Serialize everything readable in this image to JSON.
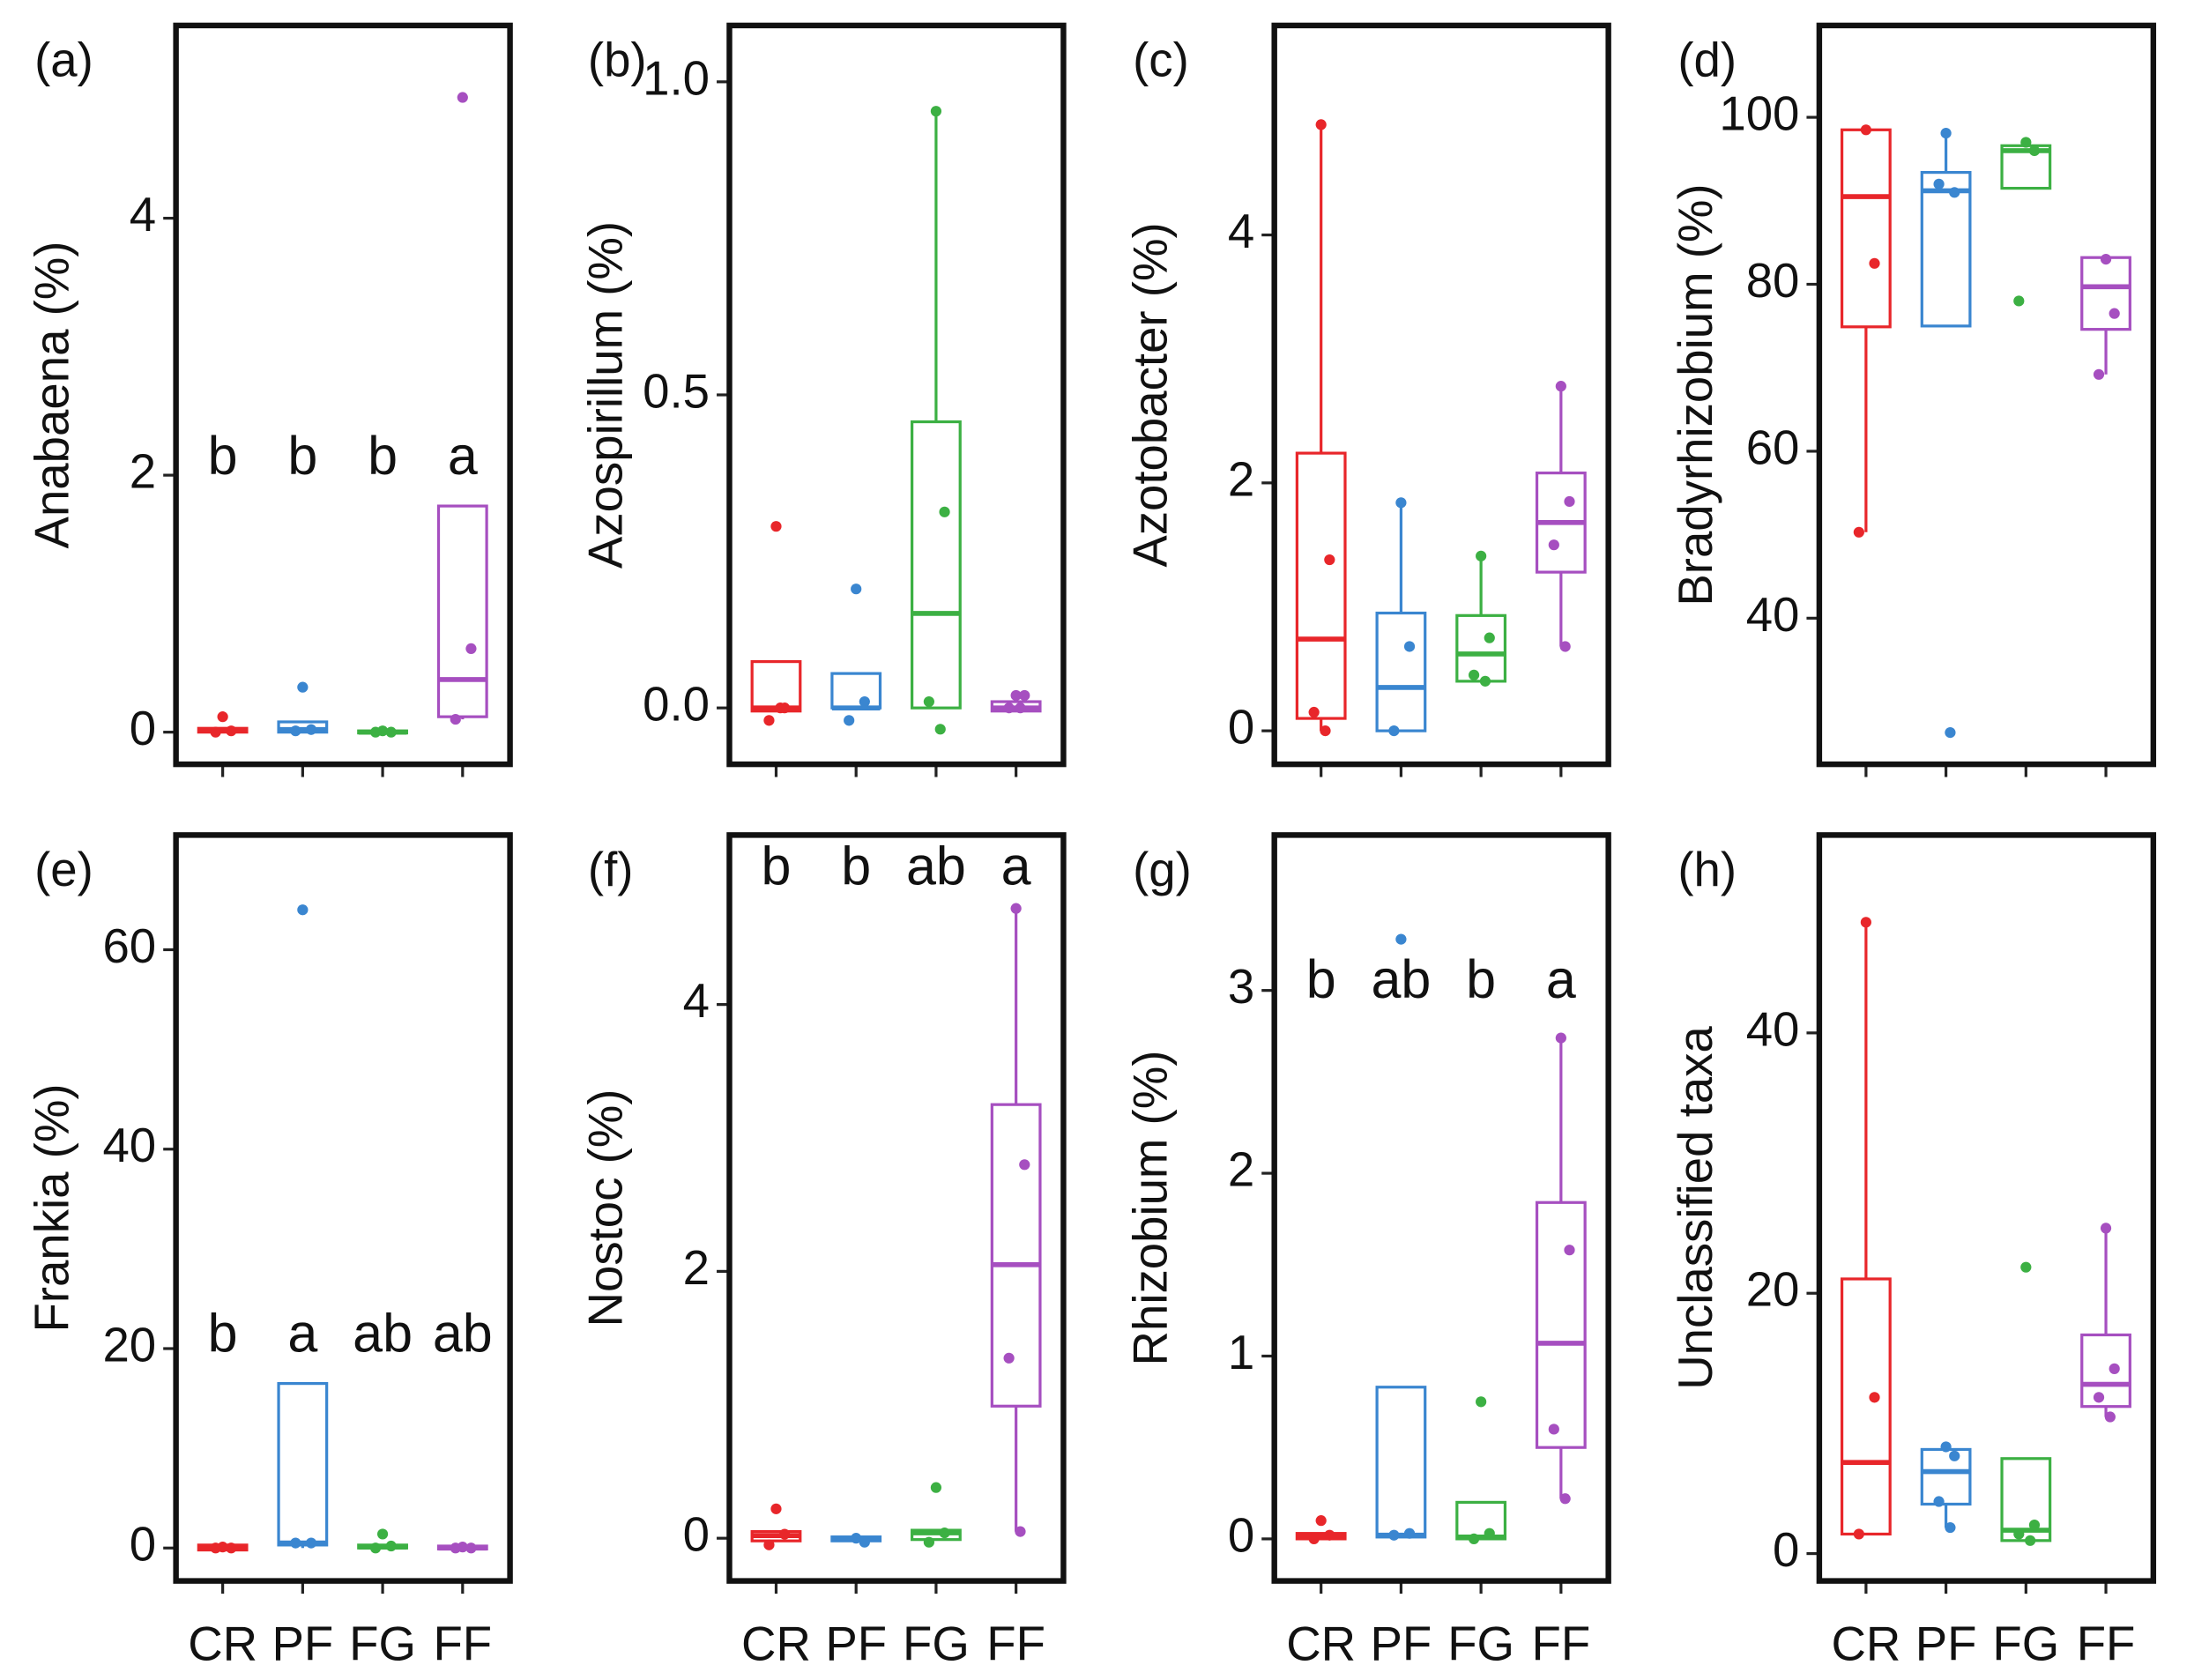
{
  "chart_data": [
    {
      "type": "box",
      "title": "(a)",
      "ylabel": "Anabaena (%)",
      "colors": [
        "#e8262a",
        "#3a86d0",
        "#3cb043",
        "#a64fc0"
      ],
      "ylim": [
        -0.25,
        5.5
      ],
      "yticks": [
        0,
        2,
        4
      ],
      "annotations": [
        "b",
        "b",
        "b",
        "a"
      ],
      "boxes": [
        {
          "whislo": 0,
          "q1": 0,
          "med": 0.01,
          "q3": 0.03,
          "whishi": 0.03,
          "points": [
            0.12,
            0.01,
            0
          ]
        },
        {
          "whislo": 0,
          "q1": 0,
          "med": 0.02,
          "q3": 0.08,
          "whishi": 0.08,
          "points": [
            0.35,
            0.02,
            0.01
          ]
        },
        {
          "whislo": 0,
          "q1": 0,
          "med": 0,
          "q3": 0.01,
          "whishi": 0.01,
          "points": [
            0.01,
            0,
            0
          ]
        },
        {
          "whislo": 0.1,
          "q1": 0.12,
          "med": 0.41,
          "q3": 1.76,
          "whishi": 1.76,
          "points": [
            4.94,
            0.65,
            0.1
          ]
        }
      ]
    },
    {
      "type": "box",
      "title": "(b)",
      "ylabel": "Azospirillum (%)",
      "colors": [
        "#e8262a",
        "#3a86d0",
        "#3cb043",
        "#a64fc0"
      ],
      "ylim": [
        -0.09,
        1.09
      ],
      "yticks": [
        {
          "value": 0,
          "label": "0.0"
        },
        {
          "value": 0.5,
          "label": "0.5"
        },
        {
          "value": 1,
          "label": "1.0"
        }
      ],
      "boxes": [
        {
          "whislo": -0.005,
          "q1": -0.005,
          "med": 0,
          "q3": 0.074,
          "whishi": 0.074,
          "points": [
            0.29,
            0,
            -0.02,
            0
          ]
        },
        {
          "whislo": 0,
          "q1": 0,
          "med": 0,
          "q3": 0.055,
          "whishi": 0.055,
          "points": [
            0.19,
            0.01,
            -0.02
          ]
        },
        {
          "whislo": 0,
          "q1": 0,
          "med": 0.151,
          "q3": 0.457,
          "whishi": 0.953,
          "points": [
            0.953,
            0.313,
            0.01,
            -0.034
          ]
        },
        {
          "whislo": -0.005,
          "q1": -0.005,
          "med": 0,
          "q3": 0.01,
          "whishi": 0.01,
          "points": [
            0.02,
            0.02,
            0,
            0
          ]
        }
      ]
    },
    {
      "type": "box",
      "title": "(c)",
      "ylabel": "Azotobacter (%)",
      "colors": [
        "#e8262a",
        "#3a86d0",
        "#3cb043",
        "#a64fc0"
      ],
      "ylim": [
        -0.27,
        5.69
      ],
      "yticks": [
        0,
        2,
        4
      ],
      "boxes": [
        {
          "whislo": 0,
          "q1": 0.1,
          "med": 0.74,
          "q3": 2.24,
          "whishi": 4.89,
          "points": [
            4.89,
            1.38,
            0.15,
            0
          ]
        },
        {
          "whislo": 0,
          "q1": 0,
          "med": 0.35,
          "q3": 0.95,
          "whishi": 1.84,
          "points": [
            1.84,
            0.68,
            0
          ]
        },
        {
          "whislo": 0.4,
          "q1": 0.4,
          "med": 0.62,
          "q3": 0.93,
          "whishi": 1.41,
          "points": [
            1.41,
            0.75,
            0.45,
            0.4
          ]
        },
        {
          "whislo": 0.68,
          "q1": 1.28,
          "med": 1.68,
          "q3": 2.08,
          "whishi": 2.78,
          "points": [
            2.78,
            1.85,
            1.5,
            0.68
          ]
        }
      ]
    },
    {
      "type": "box",
      "title": "(d)",
      "ylabel": "Bradyrhizobium (%)",
      "colors": [
        "#e8262a",
        "#3a86d0",
        "#3cb043",
        "#a64fc0"
      ],
      "ylim": [
        22.5,
        111
      ],
      "yticks": [
        40,
        60,
        80,
        100
      ],
      "boxes": [
        {
          "whislo": 50.3,
          "q1": 74.9,
          "med": 90.5,
          "q3": 98.5,
          "whishi": 98.5,
          "points": [
            98.5,
            82.5,
            50.3
          ]
        },
        {
          "whislo": 75,
          "q1": 75,
          "med": 91.2,
          "q3": 93.4,
          "whishi": 98.1,
          "points": [
            98.1,
            91,
            92,
            26.3
          ]
        },
        {
          "whislo": 91.5,
          "q1": 91.5,
          "med": 96,
          "q3": 96.6,
          "whishi": 97,
          "points": [
            97,
            96,
            78
          ]
        },
        {
          "whislo": 69.2,
          "q1": 74.6,
          "med": 79.7,
          "q3": 83.2,
          "whishi": 83.2,
          "points": [
            83,
            76.5,
            69.2
          ]
        }
      ]
    },
    {
      "type": "box",
      "title": "(e)",
      "ylabel": "Frankia (%)",
      "colors": [
        "#e8262a",
        "#3a86d0",
        "#3cb043",
        "#a64fc0"
      ],
      "categories": [
        "CR",
        "PF",
        "FG",
        "FF"
      ],
      "ylim": [
        -3.3,
        71.5
      ],
      "yticks": [
        0,
        20,
        40,
        60
      ],
      "annotations": [
        "b",
        "a",
        "ab",
        "ab"
      ],
      "boxes": [
        {
          "whislo": -0.2,
          "q1": -0.2,
          "med": 0,
          "q3": 0.3,
          "whishi": 0.3,
          "points": [
            0.1,
            0,
            0
          ]
        },
        {
          "whislo": 0,
          "q1": 0.3,
          "med": 0.5,
          "q3": 16.5,
          "whishi": 16.5,
          "points": [
            64,
            0.5,
            0.5
          ]
        },
        {
          "whislo": 0,
          "q1": 0,
          "med": 0.1,
          "q3": 0.3,
          "whishi": 0.3,
          "points": [
            1.4,
            0.2,
            0
          ]
        },
        {
          "whislo": -0.1,
          "q1": -0.1,
          "med": 0,
          "q3": 0.2,
          "whishi": 0.2,
          "points": [
            0.1,
            0,
            0
          ]
        }
      ]
    },
    {
      "type": "box",
      "title": "(f)",
      "ylabel": "Nostoc (%)",
      "colors": [
        "#e8262a",
        "#3a86d0",
        "#3cb043",
        "#a64fc0"
      ],
      "categories": [
        "CR",
        "PF",
        "FG",
        "FF"
      ],
      "ylim": [
        -0.32,
        5.27
      ],
      "yticks": [
        0,
        2,
        4
      ],
      "annotations": [
        "b",
        "b",
        "ab",
        "a"
      ],
      "boxes": [
        {
          "whislo": -0.02,
          "q1": -0.02,
          "med": 0.02,
          "q3": 0.05,
          "whishi": 0.05,
          "points": [
            0.22,
            0.03,
            -0.05
          ]
        },
        {
          "whislo": -0.02,
          "q1": -0.02,
          "med": 0,
          "q3": 0.01,
          "whishi": 0.01,
          "points": [
            0,
            -0.03
          ]
        },
        {
          "whislo": -0.01,
          "q1": -0.01,
          "med": 0.04,
          "q3": 0.06,
          "whishi": 0.06,
          "points": [
            0.38,
            0.04,
            -0.03
          ]
        },
        {
          "whislo": 0.05,
          "q1": 0.99,
          "med": 2.05,
          "q3": 3.25,
          "whishi": 4.72,
          "points": [
            4.72,
            2.8,
            1.35,
            0.05
          ]
        }
      ]
    },
    {
      "type": "box",
      "title": "(g)",
      "ylabel": "Rhizobium (%)",
      "colors": [
        "#e8262a",
        "#3a86d0",
        "#3cb043",
        "#a64fc0"
      ],
      "categories": [
        "CR",
        "PF",
        "FG",
        "FF"
      ],
      "ylim": [
        -0.23,
        3.85
      ],
      "yticks": [
        0,
        1,
        2,
        3
      ],
      "annotations": [
        "b",
        "ab",
        "b",
        "a"
      ],
      "boxes": [
        {
          "whislo": 0,
          "q1": 0,
          "med": 0.01,
          "q3": 0.03,
          "whishi": 0.03,
          "points": [
            0.1,
            0.02,
            0
          ]
        },
        {
          "whislo": 0.01,
          "q1": 0.01,
          "med": 0.02,
          "q3": 0.83,
          "whishi": 0.83,
          "points": [
            3.28,
            0.03,
            0.02
          ]
        },
        {
          "whislo": 0,
          "q1": 0,
          "med": 0.01,
          "q3": 0.2,
          "whishi": 0.2,
          "points": [
            0.75,
            0.03,
            0
          ]
        },
        {
          "whislo": 0.22,
          "q1": 0.5,
          "med": 1.07,
          "q3": 1.84,
          "whishi": 2.74,
          "points": [
            2.74,
            1.58,
            0.6,
            0.22
          ]
        }
      ]
    },
    {
      "type": "box",
      "title": "(h)",
      "ylabel": "Unclassified taxa",
      "colors": [
        "#e8262a",
        "#3a86d0",
        "#3cb043",
        "#a64fc0"
      ],
      "categories": [
        "CR",
        "PF",
        "FG",
        "FF"
      ],
      "ylim": [
        -2.1,
        55.2
      ],
      "yticks": [
        0,
        20,
        40
      ],
      "boxes": [
        {
          "whislo": 1.5,
          "q1": 1.5,
          "med": 7,
          "q3": 21.1,
          "whishi": 48.5,
          "points": [
            48.5,
            12,
            1.5
          ]
        },
        {
          "whislo": 2,
          "q1": 3.8,
          "med": 6.3,
          "q3": 8,
          "whishi": 8,
          "points": [
            8.2,
            7.5,
            4,
            2
          ]
        },
        {
          "whislo": 1,
          "q1": 1,
          "med": 1.8,
          "q3": 7.3,
          "whishi": 7.3,
          "points": [
            22,
            2.2,
            1.5,
            1
          ]
        },
        {
          "whislo": 10.5,
          "q1": 11.3,
          "med": 13,
          "q3": 16.8,
          "whishi": 25,
          "points": [
            25,
            14.2,
            12,
            10.5
          ]
        }
      ]
    }
  ]
}
